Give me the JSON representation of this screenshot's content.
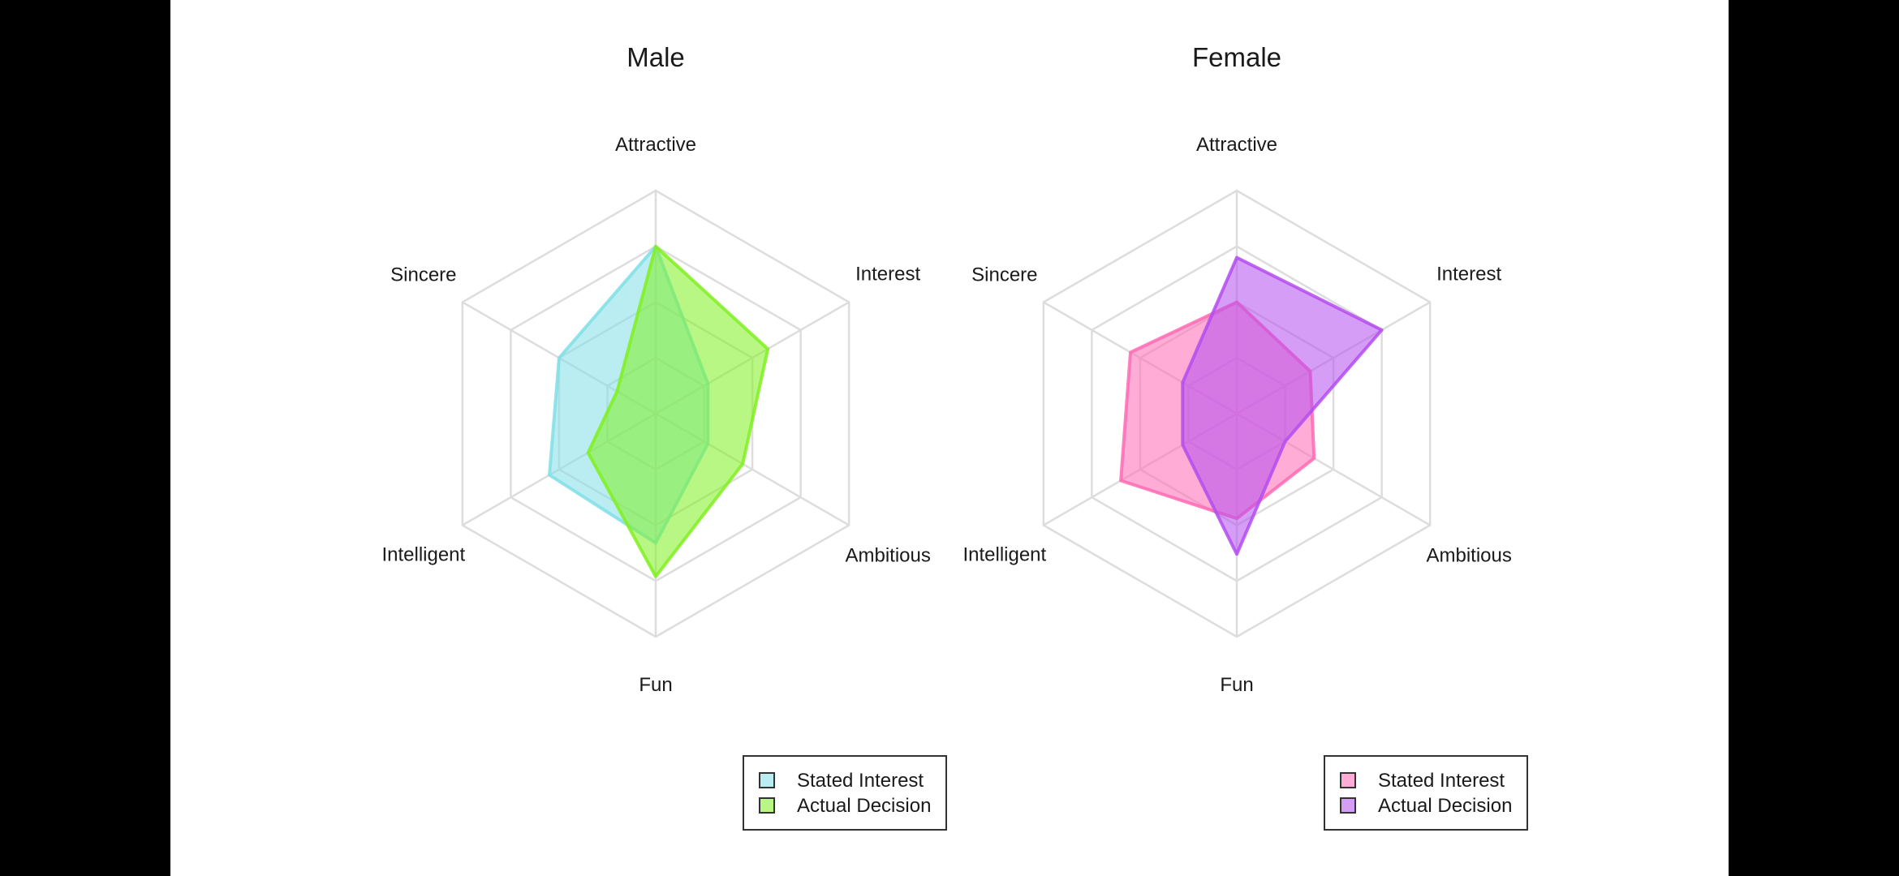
{
  "colors": {
    "background": "#000000",
    "panel": "#ffffff",
    "grid": "#dddddd",
    "text": "#1a1a1a",
    "legend_border": "#333333"
  },
  "chart_data": [
    {
      "type": "radar",
      "title": "Male",
      "axes": [
        "Attractive",
        "Interest",
        "Ambitious",
        "Fun",
        "Intelligent",
        "Sincere"
      ],
      "rlim": [
        0,
        1
      ],
      "grid_levels": 4,
      "grid": true,
      "legend_position": "bottom-right",
      "series": [
        {
          "name": "Stated Interest",
          "color": "#7fdfe6",
          "values": [
            0.75,
            0.27,
            0.27,
            0.58,
            0.55,
            0.5
          ]
        },
        {
          "name": "Actual Decision",
          "color": "#80f020",
          "values": [
            0.75,
            0.58,
            0.45,
            0.73,
            0.35,
            0.2
          ]
        }
      ]
    },
    {
      "type": "radar",
      "title": "Female",
      "axes": [
        "Attractive",
        "Interest",
        "Ambitious",
        "Fun",
        "Intelligent",
        "Sincere"
      ],
      "rlim": [
        0,
        1
      ],
      "grid_levels": 4,
      "grid": true,
      "legend_position": "bottom-right",
      "series": [
        {
          "name": "Stated Interest",
          "color": "#ff69b4",
          "values": [
            0.5,
            0.38,
            0.4,
            0.47,
            0.6,
            0.55
          ]
        },
        {
          "name": "Actual Decision",
          "color": "#b44cf0",
          "values": [
            0.7,
            0.75,
            0.25,
            0.63,
            0.28,
            0.28
          ]
        }
      ]
    }
  ]
}
